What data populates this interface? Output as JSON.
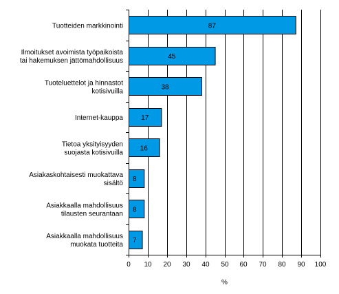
{
  "chart_data": {
    "type": "bar",
    "orientation": "horizontal",
    "categories": [
      [
        "Tuotteiden markkinointi"
      ],
      [
        "Ilmoitukset avoimista työpaikoista",
        "tai hakemuksen jättömahdollisuus"
      ],
      [
        "Tuoteluettelot ja hinnastot",
        "kotisivuilla"
      ],
      [
        "Internet-kauppa"
      ],
      [
        "Tietoa yksityisyyden",
        "suojasta kotisivuilla"
      ],
      [
        "Asiakaskohtaisesti muokattava",
        "sisältö"
      ],
      [
        "Asiakkaalla mahdollisuus",
        "tilausten seurantaan"
      ],
      [
        "Asiakkaalla mahdollisuus",
        "muokata tuotteita"
      ]
    ],
    "values": [
      87,
      45,
      38,
      17,
      16,
      8,
      8,
      7
    ],
    "xlabel": "%",
    "xlim": [
      0,
      100
    ],
    "xticks": [
      0,
      10,
      20,
      30,
      40,
      50,
      60,
      70,
      80,
      90,
      100
    ],
    "grid": "vertical",
    "bar_color": "#0099e6",
    "legend": "none"
  }
}
